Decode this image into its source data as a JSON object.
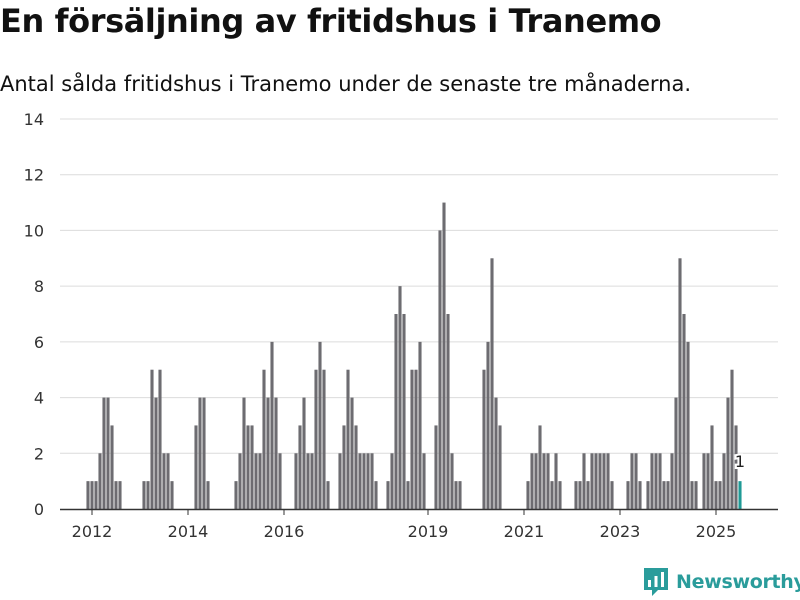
{
  "title": "En försäljning av fritidshus i Tranemo",
  "subtitle": "Antal sålda fritidshus i Tranemo under de senaste tre månaderna.",
  "brand": {
    "name": "Newsworthy",
    "icon": "newsworthy-logo-icon",
    "color": "#2a9c9b"
  },
  "colors": {
    "bar": "#6d6c71",
    "highlight": "#1f9a96",
    "grid": "#dcdcdc",
    "axis": "#333333"
  },
  "chart_data": {
    "type": "bar",
    "x_unit": "month",
    "ylim": [
      0,
      14
    ],
    "yticks": [
      0,
      2,
      4,
      6,
      8,
      10,
      12,
      14
    ],
    "xticks": [
      "2012",
      "2014",
      "2016",
      "2019",
      "2021",
      "2023",
      "2025"
    ],
    "grid": true,
    "series": [
      {
        "values": [
          {
            "x": "2011-12",
            "y": 1
          },
          {
            "x": "2012-01",
            "y": 1
          },
          {
            "x": "2012-02",
            "y": 1
          },
          {
            "x": "2012-03",
            "y": 2
          },
          {
            "x": "2012-04",
            "y": 4
          },
          {
            "x": "2012-05",
            "y": 4
          },
          {
            "x": "2012-06",
            "y": 3
          },
          {
            "x": "2012-07",
            "y": 1
          },
          {
            "x": "2012-08",
            "y": 1
          },
          {
            "x": "2013-02",
            "y": 1
          },
          {
            "x": "2013-03",
            "y": 1
          },
          {
            "x": "2013-04",
            "y": 5
          },
          {
            "x": "2013-05",
            "y": 4
          },
          {
            "x": "2013-06",
            "y": 5
          },
          {
            "x": "2013-07",
            "y": 2
          },
          {
            "x": "2013-08",
            "y": 2
          },
          {
            "x": "2013-09",
            "y": 1
          },
          {
            "x": "2014-03",
            "y": 3
          },
          {
            "x": "2014-04",
            "y": 4
          },
          {
            "x": "2014-05",
            "y": 4
          },
          {
            "x": "2014-06",
            "y": 1
          },
          {
            "x": "2015-01",
            "y": 1
          },
          {
            "x": "2015-02",
            "y": 2
          },
          {
            "x": "2015-03",
            "y": 4
          },
          {
            "x": "2015-04",
            "y": 3
          },
          {
            "x": "2015-05",
            "y": 3
          },
          {
            "x": "2015-06",
            "y": 2
          },
          {
            "x": "2015-07",
            "y": 2
          },
          {
            "x": "2015-08",
            "y": 5
          },
          {
            "x": "2015-09",
            "y": 4
          },
          {
            "x": "2015-10",
            "y": 6
          },
          {
            "x": "2015-11",
            "y": 4
          },
          {
            "x": "2015-12",
            "y": 2
          },
          {
            "x": "2016-04",
            "y": 2
          },
          {
            "x": "2016-05",
            "y": 3
          },
          {
            "x": "2016-06",
            "y": 4
          },
          {
            "x": "2016-07",
            "y": 2
          },
          {
            "x": "2016-08",
            "y": 2
          },
          {
            "x": "2016-09",
            "y": 5
          },
          {
            "x": "2016-10",
            "y": 6
          },
          {
            "x": "2016-11",
            "y": 5
          },
          {
            "x": "2016-12",
            "y": 1
          },
          {
            "x": "2017-03",
            "y": 2
          },
          {
            "x": "2017-04",
            "y": 3
          },
          {
            "x": "2017-05",
            "y": 5
          },
          {
            "x": "2017-06",
            "y": 4
          },
          {
            "x": "2017-07",
            "y": 3
          },
          {
            "x": "2017-08",
            "y": 2
          },
          {
            "x": "2017-09",
            "y": 2
          },
          {
            "x": "2017-10",
            "y": 2
          },
          {
            "x": "2017-11",
            "y": 2
          },
          {
            "x": "2017-12",
            "y": 1
          },
          {
            "x": "2018-03",
            "y": 1
          },
          {
            "x": "2018-04",
            "y": 2
          },
          {
            "x": "2018-05",
            "y": 7
          },
          {
            "x": "2018-06",
            "y": 8
          },
          {
            "x": "2018-07",
            "y": 7
          },
          {
            "x": "2018-08",
            "y": 1
          },
          {
            "x": "2018-09",
            "y": 5
          },
          {
            "x": "2018-10",
            "y": 5
          },
          {
            "x": "2018-11",
            "y": 6
          },
          {
            "x": "2018-12",
            "y": 2
          },
          {
            "x": "2019-03",
            "y": 3
          },
          {
            "x": "2019-04",
            "y": 10
          },
          {
            "x": "2019-05",
            "y": 11
          },
          {
            "x": "2019-06",
            "y": 7
          },
          {
            "x": "2019-07",
            "y": 2
          },
          {
            "x": "2019-08",
            "y": 1
          },
          {
            "x": "2019-09",
            "y": 1
          },
          {
            "x": "2020-03",
            "y": 5
          },
          {
            "x": "2020-04",
            "y": 6
          },
          {
            "x": "2020-05",
            "y": 9
          },
          {
            "x": "2020-06",
            "y": 4
          },
          {
            "x": "2020-07",
            "y": 3
          },
          {
            "x": "2021-02",
            "y": 1
          },
          {
            "x": "2021-03",
            "y": 2
          },
          {
            "x": "2021-04",
            "y": 2
          },
          {
            "x": "2021-05",
            "y": 3
          },
          {
            "x": "2021-06",
            "y": 2
          },
          {
            "x": "2021-07",
            "y": 2
          },
          {
            "x": "2021-08",
            "y": 1
          },
          {
            "x": "2021-09",
            "y": 2
          },
          {
            "x": "2021-10",
            "y": 1
          },
          {
            "x": "2022-02",
            "y": 1
          },
          {
            "x": "2022-03",
            "y": 1
          },
          {
            "x": "2022-04",
            "y": 2
          },
          {
            "x": "2022-05",
            "y": 1
          },
          {
            "x": "2022-06",
            "y": 2
          },
          {
            "x": "2022-07",
            "y": 2
          },
          {
            "x": "2022-08",
            "y": 2
          },
          {
            "x": "2022-09",
            "y": 2
          },
          {
            "x": "2022-10",
            "y": 2
          },
          {
            "x": "2022-11",
            "y": 1
          },
          {
            "x": "2023-03",
            "y": 1
          },
          {
            "x": "2023-04",
            "y": 2
          },
          {
            "x": "2023-05",
            "y": 2
          },
          {
            "x": "2023-06",
            "y": 1
          },
          {
            "x": "2023-08",
            "y": 1
          },
          {
            "x": "2023-09",
            "y": 2
          },
          {
            "x": "2023-10",
            "y": 2
          },
          {
            "x": "2023-11",
            "y": 2
          },
          {
            "x": "2023-12",
            "y": 1
          },
          {
            "x": "2024-01",
            "y": 1
          },
          {
            "x": "2024-02",
            "y": 2
          },
          {
            "x": "2024-03",
            "y": 4
          },
          {
            "x": "2024-04",
            "y": 9
          },
          {
            "x": "2024-05",
            "y": 7
          },
          {
            "x": "2024-06",
            "y": 6
          },
          {
            "x": "2024-07",
            "y": 1
          },
          {
            "x": "2024-08",
            "y": 1
          },
          {
            "x": "2024-10",
            "y": 2
          },
          {
            "x": "2024-11",
            "y": 2
          },
          {
            "x": "2024-12",
            "y": 3
          },
          {
            "x": "2025-01",
            "y": 1
          },
          {
            "x": "2025-02",
            "y": 1
          },
          {
            "x": "2025-03",
            "y": 2
          },
          {
            "x": "2025-04",
            "y": 4
          },
          {
            "x": "2025-05",
            "y": 5
          },
          {
            "x": "2025-06",
            "y": 3
          },
          {
            "x": "2025-07",
            "y": 1
          }
        ]
      }
    ],
    "highlight": {
      "x": "2025-07",
      "y": 1,
      "label": "1"
    }
  }
}
